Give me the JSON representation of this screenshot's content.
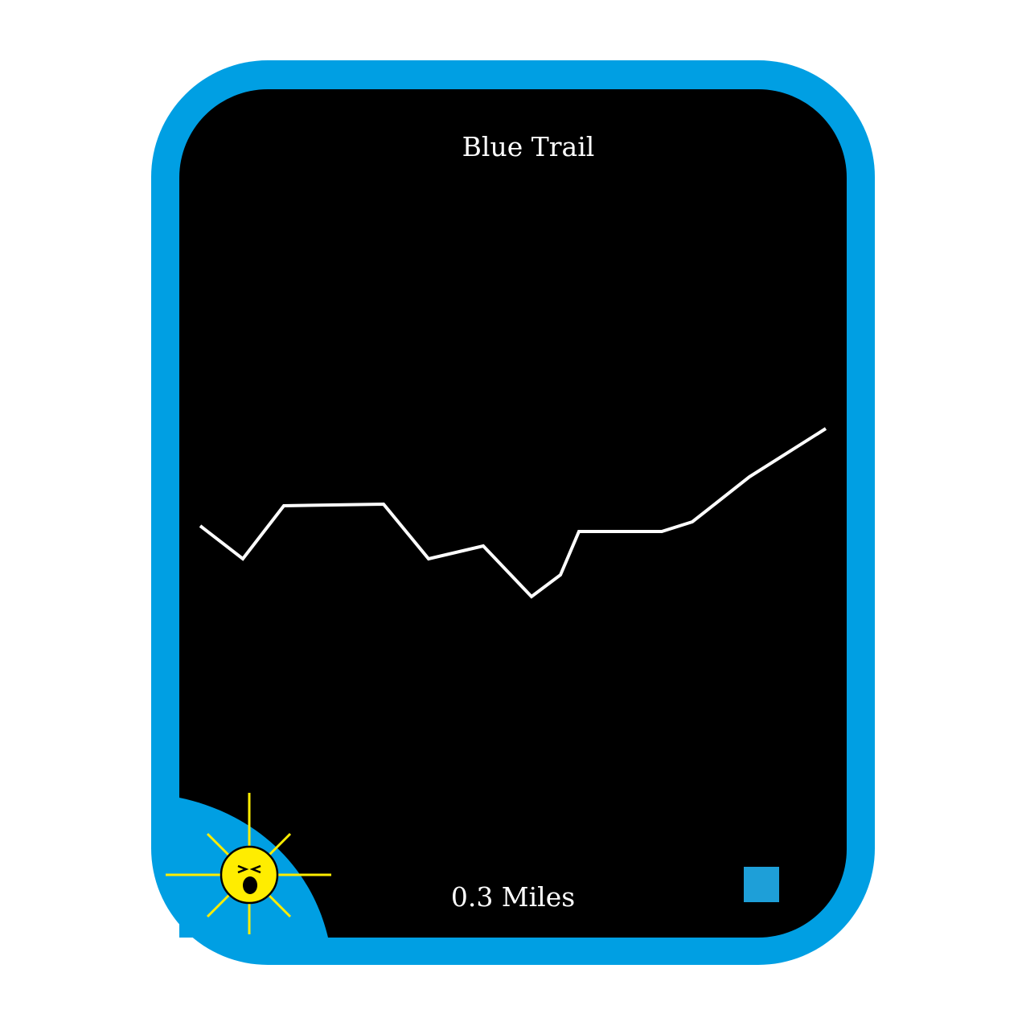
{
  "card": {
    "title": "Blue Trail",
    "distance": "0.3 Miles",
    "icons": [
      "sun-face-icon",
      "trail-color-square-icon"
    ]
  },
  "colors": {
    "frame": "#009fe3",
    "background": "#000000",
    "trail_line": "#ffffff",
    "sun": "#ffed00",
    "marker": "#1e9fd8"
  }
}
